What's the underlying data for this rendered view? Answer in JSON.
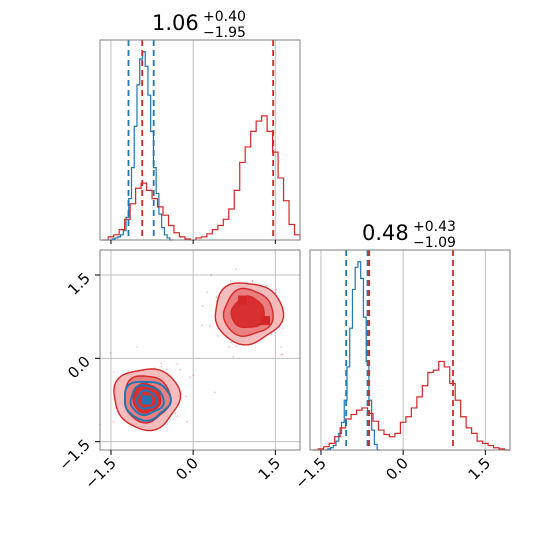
{
  "colors": {
    "blue": "#1f77b4",
    "red": "#d62728",
    "grid": "#bfbfbf",
    "frame": "#7f7f7f"
  },
  "chart_data": [
    {
      "type": "histogram",
      "panel": "top-left",
      "title": "1.06",
      "title_sup": "+0.40",
      "title_sub": "−1.95",
      "xlim": [
        -1.7,
        1.95
      ],
      "grid": true,
      "series": [
        {
          "name": "",
          "color": "blue",
          "x": [
            -1.5,
            -1.45,
            -1.4,
            -1.35,
            -1.3,
            -1.25,
            -1.2,
            -1.15,
            -1.1,
            -1.05,
            -1.0,
            -0.95,
            -0.9,
            -0.85,
            -0.8,
            -0.75,
            -0.7,
            -0.65,
            -0.6,
            -0.55,
            -0.5,
            -0.45,
            -0.4
          ],
          "y": [
            0,
            1,
            2,
            3,
            5,
            9,
            22,
            40,
            70,
            110,
            150,
            175,
            182,
            168,
            140,
            105,
            70,
            45,
            25,
            12,
            5,
            2,
            0
          ]
        },
        {
          "name": "",
          "color": "red",
          "x": [
            -1.6,
            -1.5,
            -1.4,
            -1.3,
            -1.2,
            -1.1,
            -1.0,
            -0.9,
            -0.8,
            -0.7,
            -0.6,
            -0.5,
            -0.4,
            -0.3,
            -0.2,
            -0.1,
            0.0,
            0.1,
            0.2,
            0.3,
            0.4,
            0.5,
            0.6,
            0.7,
            0.8,
            0.9,
            1.0,
            1.1,
            1.2,
            1.3,
            1.4,
            1.5,
            1.6,
            1.7,
            1.8,
            1.9
          ],
          "y": [
            0,
            3,
            5,
            10,
            20,
            35,
            50,
            55,
            48,
            40,
            32,
            24,
            14,
            7,
            3,
            1,
            0,
            2,
            3,
            6,
            10,
            14,
            20,
            30,
            48,
            75,
            90,
            105,
            115,
            120,
            105,
            85,
            60,
            38,
            15,
            5
          ]
        }
      ],
      "vlines": [
        {
          "x": -1.18,
          "color": "blue",
          "dashed": true
        },
        {
          "x": -0.72,
          "color": "blue",
          "dashed": true
        },
        {
          "x": -0.93,
          "color": "red",
          "dashed": true
        },
        {
          "x": 1.46,
          "color": "red",
          "dashed": true
        }
      ]
    },
    {
      "type": "contour",
      "panel": "bottom-left",
      "xlim": [
        -1.7,
        1.95
      ],
      "ylim": [
        -1.65,
        1.95
      ],
      "xticks": [
        -1.5,
        0.0,
        1.5
      ],
      "xtick_labels": [
        "−1.5",
        "0.0",
        "1.5"
      ],
      "yticks": [
        -1.5,
        0.0,
        1.5
      ],
      "ytick_labels": [
        "−1.5",
        "0.0",
        "1.5"
      ],
      "grid": true,
      "markers": [
        {
          "x": -0.85,
          "y": -0.75,
          "color": "blue"
        },
        {
          "x": 0.9,
          "y": 1.05,
          "color": "red"
        },
        {
          "x": 1.32,
          "y": 0.68,
          "color": "red"
        }
      ]
    },
    {
      "type": "histogram",
      "panel": "bottom-right",
      "title": "0.48",
      "title_sup": "+0.43",
      "title_sub": "−1.09",
      "xlim": [
        -1.7,
        1.95
      ],
      "xticks": [
        -1.5,
        0.0,
        1.5
      ],
      "xtick_labels": [
        "−1.5",
        "0.0",
        "1.5"
      ],
      "grid": true,
      "series": [
        {
          "name": "",
          "color": "blue",
          "x": [
            -1.4,
            -1.35,
            -1.3,
            -1.25,
            -1.2,
            -1.15,
            -1.1,
            -1.05,
            -1.0,
            -0.95,
            -0.9,
            -0.85,
            -0.8,
            -0.75,
            -0.7,
            -0.65,
            -0.6,
            -0.55,
            -0.5,
            -0.45
          ],
          "y": [
            0,
            1,
            2,
            4,
            8,
            15,
            25,
            45,
            75,
            110,
            145,
            165,
            170,
            155,
            120,
            80,
            45,
            18,
            5,
            0
          ]
        },
        {
          "name": "",
          "color": "red",
          "x": [
            -1.6,
            -1.5,
            -1.4,
            -1.3,
            -1.2,
            -1.1,
            -1.0,
            -0.9,
            -0.8,
            -0.7,
            -0.6,
            -0.5,
            -0.4,
            -0.3,
            -0.2,
            -0.1,
            0.0,
            0.1,
            0.2,
            0.3,
            0.4,
            0.5,
            0.6,
            0.7,
            0.8,
            0.9,
            1.0,
            1.1,
            1.2,
            1.3,
            1.4,
            1.5,
            1.6,
            1.7,
            1.8,
            1.9
          ],
          "y": [
            0,
            1,
            3,
            6,
            12,
            20,
            28,
            32,
            36,
            38,
            33,
            26,
            18,
            14,
            12,
            15,
            25,
            30,
            38,
            48,
            58,
            70,
            72,
            80,
            75,
            60,
            45,
            30,
            20,
            15,
            8,
            6,
            4,
            2,
            1,
            0
          ]
        }
      ],
      "vlines": [
        {
          "x": -1.04,
          "color": "blue",
          "dashed": true
        },
        {
          "x": -0.65,
          "color": "blue",
          "dashed": true
        },
        {
          "x": -0.62,
          "color": "red",
          "dashed": true
        },
        {
          "x": 0.91,
          "color": "red",
          "dashed": true
        }
      ]
    }
  ]
}
